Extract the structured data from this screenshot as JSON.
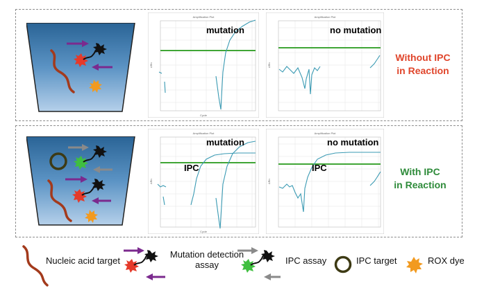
{
  "panels": [
    {
      "condition_line1": "Without IPC",
      "condition_line2": "in Reaction",
      "condition_color": "#e0452b",
      "plots": [
        {
          "label": "mutation",
          "ipc_label": ""
        },
        {
          "label": "no mutation",
          "ipc_label": ""
        }
      ]
    },
    {
      "condition_line1": "With IPC",
      "condition_line2": "in Reaction",
      "condition_color": "#2e8b3a",
      "plots": [
        {
          "label": "mutation",
          "ipc_label": "IPC"
        },
        {
          "label": "no mutation",
          "ipc_label": "IPC"
        }
      ]
    }
  ],
  "legend": {
    "nucleic_acid_target": "Nucleic acid target",
    "mutation_detection_assay_line1": "Mutation detection",
    "mutation_detection_assay_line2": "assay",
    "ipc_assay": "IPC assay",
    "ipc_target": "IPC target",
    "rox_dye": "ROX dye"
  },
  "colors": {
    "tube_top": "#2e6f9e",
    "tube_bottom": "#a9c8e6",
    "curve": "#3a9ab3",
    "threshold": "#3fa535",
    "dna": "#a33a1c",
    "mutation_arrow": "#7b2a8e",
    "ipc_arrow": "#8a8a8a",
    "probe_red": "#e53a2a",
    "probe_green": "#3fbf3f",
    "ipc_ring": "#3d3a14",
    "rox": "#f29a1f"
  }
}
